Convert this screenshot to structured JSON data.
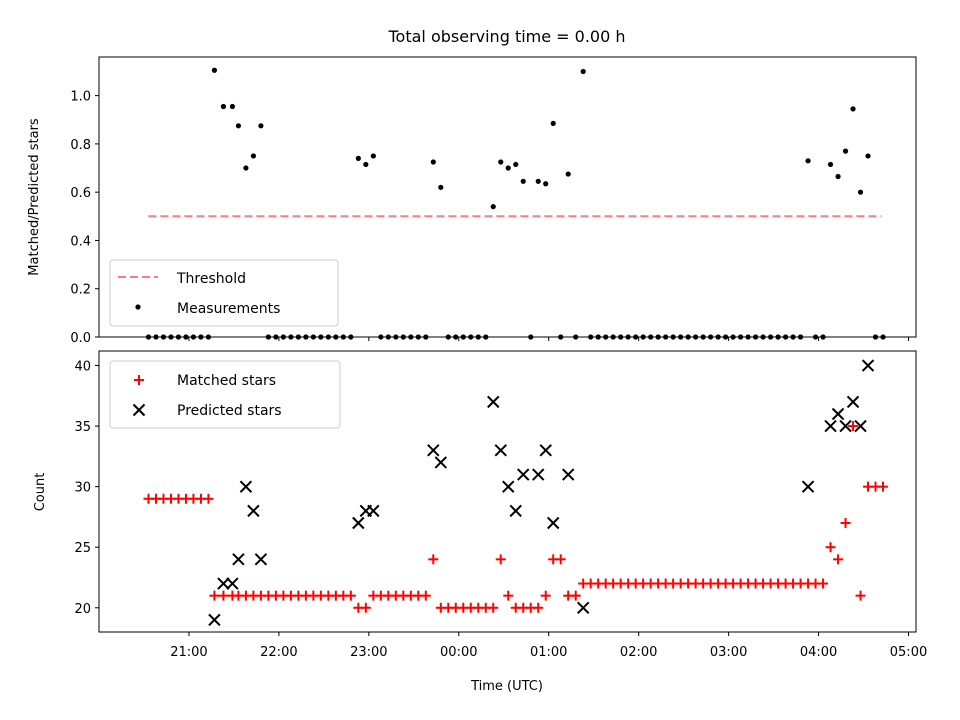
{
  "chart_data": [
    {
      "type": "scatter",
      "title": "Total observing time = 0.00 h",
      "ylabel": "Matched/Predicted stars",
      "xlabel": "",
      "ylim": [
        0,
        1.16
      ],
      "yticks": [
        0.0,
        0.2,
        0.4,
        0.6,
        0.8,
        1.0
      ],
      "ytick_labels": [
        "0.0",
        "0.2",
        "0.4",
        "0.6",
        "0.8",
        "1.0"
      ],
      "legend": [
        "Threshold",
        "Measurements"
      ],
      "legend_position": "lower-left",
      "colors": {
        "threshold": "#ff7b7b",
        "measurements": "#000000"
      },
      "threshold": {
        "name": "Threshold",
        "value": 0.5,
        "x_start": "20:33",
        "x_end": "04:42"
      },
      "series": [
        {
          "name": "Measurements",
          "points": [
            [
              "20:33",
              0
            ],
            [
              "20:38",
              0
            ],
            [
              "20:43",
              0
            ],
            [
              "20:48",
              0
            ],
            [
              "20:53",
              0
            ],
            [
              "20:58",
              0
            ],
            [
              "21:03",
              0
            ],
            [
              "21:08",
              0
            ],
            [
              "21:13",
              0
            ],
            [
              "21:17",
              1.105
            ],
            [
              "21:23",
              0.955
            ],
            [
              "21:29",
              0.955
            ],
            [
              "21:33",
              0.875
            ],
            [
              "21:38",
              0.7
            ],
            [
              "21:43",
              0.75
            ],
            [
              "21:48",
              0.875
            ],
            [
              "21:53",
              0
            ],
            [
              "21:58",
              0
            ],
            [
              "22:03",
              0
            ],
            [
              "22:08",
              0
            ],
            [
              "22:13",
              0
            ],
            [
              "22:18",
              0
            ],
            [
              "22:23",
              0
            ],
            [
              "22:28",
              0
            ],
            [
              "22:33",
              0
            ],
            [
              "22:38",
              0
            ],
            [
              "22:43",
              0
            ],
            [
              "22:48",
              0
            ],
            [
              "22:53",
              0.74
            ],
            [
              "22:58",
              0.715
            ],
            [
              "23:03",
              0.75
            ],
            [
              "23:08",
              0
            ],
            [
              "23:13",
              0
            ],
            [
              "23:18",
              0
            ],
            [
              "23:23",
              0
            ],
            [
              "23:28",
              0
            ],
            [
              "23:33",
              0
            ],
            [
              "23:38",
              0
            ],
            [
              "23:43",
              0.725
            ],
            [
              "23:48",
              0.62
            ],
            [
              "23:53",
              0
            ],
            [
              "23:58",
              0
            ],
            [
              "00:03",
              0
            ],
            [
              "00:08",
              0
            ],
            [
              "00:13",
              0
            ],
            [
              "00:18",
              0
            ],
            [
              "00:23",
              0.54
            ],
            [
              "00:28",
              0.725
            ],
            [
              "00:33",
              0.7
            ],
            [
              "00:38",
              0.715
            ],
            [
              "00:43",
              0.645
            ],
            [
              "00:48",
              0
            ],
            [
              "00:53",
              0.645
            ],
            [
              "00:58",
              0.635
            ],
            [
              "01:03",
              0.885
            ],
            [
              "01:08",
              0
            ],
            [
              "01:13",
              0.675
            ],
            [
              "01:18",
              0
            ],
            [
              "01:23",
              1.1
            ],
            [
              "01:28",
              0
            ],
            [
              "01:33",
              0
            ],
            [
              "01:38",
              0
            ],
            [
              "01:43",
              0
            ],
            [
              "01:48",
              0
            ],
            [
              "01:53",
              0
            ],
            [
              "01:58",
              0
            ],
            [
              "02:03",
              0
            ],
            [
              "02:08",
              0
            ],
            [
              "02:13",
              0
            ],
            [
              "02:18",
              0
            ],
            [
              "02:23",
              0
            ],
            [
              "02:28",
              0
            ],
            [
              "02:33",
              0
            ],
            [
              "02:38",
              0
            ],
            [
              "02:43",
              0
            ],
            [
              "02:48",
              0
            ],
            [
              "02:53",
              0
            ],
            [
              "02:58",
              0
            ],
            [
              "03:03",
              0
            ],
            [
              "03:08",
              0
            ],
            [
              "03:13",
              0
            ],
            [
              "03:18",
              0
            ],
            [
              "03:23",
              0
            ],
            [
              "03:28",
              0
            ],
            [
              "03:33",
              0
            ],
            [
              "03:38",
              0
            ],
            [
              "03:43",
              0
            ],
            [
              "03:48",
              0
            ],
            [
              "03:53",
              0.73
            ],
            [
              "03:58",
              0
            ],
            [
              "04:03",
              0
            ],
            [
              "04:08",
              0.715
            ],
            [
              "04:13",
              0.665
            ],
            [
              "04:18",
              0.77
            ],
            [
              "04:23",
              0.945
            ],
            [
              "04:28",
              0.6
            ],
            [
              "04:33",
              0.75
            ],
            [
              "04:38",
              0
            ],
            [
              "04:43",
              0
            ]
          ]
        }
      ]
    },
    {
      "type": "scatter",
      "title": "",
      "xlabel": "Time (UTC)",
      "ylabel": "Count",
      "ylim": [
        18,
        41.2
      ],
      "yticks": [
        20,
        25,
        30,
        35,
        40
      ],
      "ytick_labels": [
        "20",
        "25",
        "30",
        "35",
        "40"
      ],
      "xlim": [
        "20:00",
        "05:05"
      ],
      "xticks": [
        "21:00",
        "22:00",
        "23:00",
        "00:00",
        "01:00",
        "02:00",
        "03:00",
        "04:00",
        "05:00"
      ],
      "legend": [
        "Matched stars",
        "Predicted stars"
      ],
      "legend_position": "upper-left",
      "colors": {
        "matched": "#ff0000",
        "predicted": "#000000"
      },
      "series": [
        {
          "name": "Matched stars",
          "points": [
            [
              "20:33",
              29
            ],
            [
              "20:38",
              29
            ],
            [
              "20:43",
              29
            ],
            [
              "20:48",
              29
            ],
            [
              "20:53",
              29
            ],
            [
              "20:58",
              29
            ],
            [
              "21:03",
              29
            ],
            [
              "21:08",
              29
            ],
            [
              "21:13",
              29
            ],
            [
              "21:17",
              21
            ],
            [
              "21:23",
              21
            ],
            [
              "21:29",
              21
            ],
            [
              "21:33",
              21
            ],
            [
              "21:38",
              21
            ],
            [
              "21:43",
              21
            ],
            [
              "21:48",
              21
            ],
            [
              "21:53",
              21
            ],
            [
              "21:58",
              21
            ],
            [
              "22:03",
              21
            ],
            [
              "22:08",
              21
            ],
            [
              "22:13",
              21
            ],
            [
              "22:18",
              21
            ],
            [
              "22:23",
              21
            ],
            [
              "22:28",
              21
            ],
            [
              "22:33",
              21
            ],
            [
              "22:38",
              21
            ],
            [
              "22:43",
              21
            ],
            [
              "22:48",
              21
            ],
            [
              "22:53",
              20
            ],
            [
              "22:58",
              20
            ],
            [
              "23:03",
              21
            ],
            [
              "23:08",
              21
            ],
            [
              "23:13",
              21
            ],
            [
              "23:18",
              21
            ],
            [
              "23:23",
              21
            ],
            [
              "23:28",
              21
            ],
            [
              "23:33",
              21
            ],
            [
              "23:38",
              21
            ],
            [
              "23:43",
              24
            ],
            [
              "23:48",
              20
            ],
            [
              "23:53",
              20
            ],
            [
              "23:58",
              20
            ],
            [
              "00:03",
              20
            ],
            [
              "00:08",
              20
            ],
            [
              "00:13",
              20
            ],
            [
              "00:18",
              20
            ],
            [
              "00:23",
              20
            ],
            [
              "00:28",
              24
            ],
            [
              "00:33",
              21
            ],
            [
              "00:38",
              20
            ],
            [
              "00:43",
              20
            ],
            [
              "00:48",
              20
            ],
            [
              "00:53",
              20
            ],
            [
              "00:58",
              21
            ],
            [
              "01:03",
              24
            ],
            [
              "01:08",
              24
            ],
            [
              "01:13",
              21
            ],
            [
              "01:18",
              21
            ],
            [
              "01:23",
              22
            ],
            [
              "01:28",
              22
            ],
            [
              "01:33",
              22
            ],
            [
              "01:38",
              22
            ],
            [
              "01:43",
              22
            ],
            [
              "01:48",
              22
            ],
            [
              "01:53",
              22
            ],
            [
              "01:58",
              22
            ],
            [
              "02:03",
              22
            ],
            [
              "02:08",
              22
            ],
            [
              "02:13",
              22
            ],
            [
              "02:18",
              22
            ],
            [
              "02:23",
              22
            ],
            [
              "02:28",
              22
            ],
            [
              "02:33",
              22
            ],
            [
              "02:38",
              22
            ],
            [
              "02:43",
              22
            ],
            [
              "02:48",
              22
            ],
            [
              "02:53",
              22
            ],
            [
              "02:58",
              22
            ],
            [
              "03:03",
              22
            ],
            [
              "03:08",
              22
            ],
            [
              "03:13",
              22
            ],
            [
              "03:18",
              22
            ],
            [
              "03:23",
              22
            ],
            [
              "03:28",
              22
            ],
            [
              "03:33",
              22
            ],
            [
              "03:38",
              22
            ],
            [
              "03:43",
              22
            ],
            [
              "03:48",
              22
            ],
            [
              "03:53",
              22
            ],
            [
              "03:58",
              22
            ],
            [
              "04:03",
              22
            ],
            [
              "04:08",
              25
            ],
            [
              "04:13",
              24
            ],
            [
              "04:18",
              27
            ],
            [
              "04:23",
              35
            ],
            [
              "04:28",
              21
            ],
            [
              "04:33",
              30
            ],
            [
              "04:38",
              30
            ],
            [
              "04:43",
              30
            ]
          ]
        },
        {
          "name": "Predicted stars",
          "points": [
            [
              "21:17",
              19
            ],
            [
              "21:23",
              22
            ],
            [
              "21:29",
              22
            ],
            [
              "21:33",
              24
            ],
            [
              "21:38",
              30
            ],
            [
              "21:43",
              28
            ],
            [
              "21:48",
              24
            ],
            [
              "22:53",
              27
            ],
            [
              "22:58",
              28
            ],
            [
              "23:03",
              28
            ],
            [
              "23:43",
              33
            ],
            [
              "23:48",
              32
            ],
            [
              "00:23",
              37
            ],
            [
              "00:28",
              33
            ],
            [
              "00:33",
              30
            ],
            [
              "00:38",
              28
            ],
            [
              "00:43",
              31
            ],
            [
              "00:53",
              31
            ],
            [
              "00:58",
              33
            ],
            [
              "01:03",
              27
            ],
            [
              "01:13",
              31
            ],
            [
              "01:23",
              20
            ],
            [
              "03:53",
              30
            ],
            [
              "04:08",
              35
            ],
            [
              "04:13",
              36
            ],
            [
              "04:18",
              35
            ],
            [
              "04:23",
              37
            ],
            [
              "04:28",
              35
            ],
            [
              "04:33",
              40
            ]
          ]
        }
      ]
    }
  ]
}
